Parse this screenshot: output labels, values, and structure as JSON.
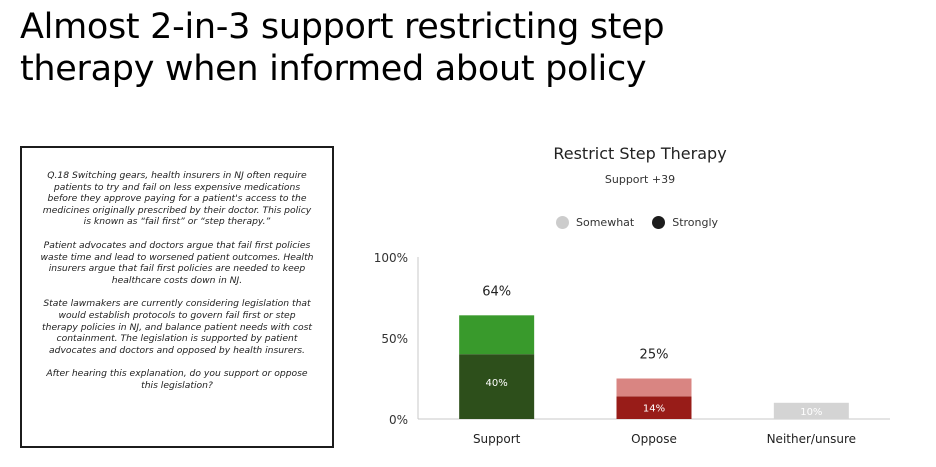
{
  "slide": {
    "title_line1": "Almost 2-in-3 support restricting step",
    "title_line2": "therapy when informed about policy"
  },
  "question": {
    "paragraphs": [
      "Q.18 Switching gears, health insurers in NJ often require patients to try and fail on less expensive medications before they approve paying for a patient's access to the medicines originally prescribed by their doctor. This policy is known as “fail first” or “step therapy.”",
      "Patient advocates and doctors argue that fail first policies waste time and lead to worsened patient outcomes. Health insurers argue that fail first policies are needed to keep healthcare costs down in NJ.",
      "State lawmakers are currently considering legislation that would establish protocols to govern fail first or step therapy policies in NJ, and balance patient needs with cost containment. The legislation is supported by patient advocates and doctors and opposed by health insurers.",
      "After hearing this explanation, do you support or oppose this legislation?"
    ]
  },
  "chart_data": {
    "type": "bar",
    "stacked": true,
    "title": "Restrict Step Therapy",
    "subtitle": "Support +39",
    "categories": [
      "Support",
      "Oppose",
      "Neither/unsure"
    ],
    "ylim": [
      0,
      100
    ],
    "yticks": [
      0,
      50,
      100
    ],
    "ytick_labels": [
      "0%",
      "50%",
      "100%"
    ],
    "legend": {
      "placement": "top",
      "entries": [
        {
          "label": "Somewhat",
          "color": "#cccccc"
        },
        {
          "label": "Strongly",
          "color": "#1c1c1c"
        }
      ]
    },
    "bars": [
      {
        "category": "Support",
        "total": 64,
        "total_label": "64%",
        "strongly": 40,
        "strongly_label": "40%",
        "somewhat": 24,
        "strong_color": "#2d4f1b",
        "somewhat_color": "#399a2c"
      },
      {
        "category": "Oppose",
        "total": 25,
        "total_label": "25%",
        "strongly": 14,
        "strongly_label": "14%",
        "somewhat": 11,
        "strong_color": "#981c18",
        "somewhat_color": "#d98582"
      },
      {
        "category": "Neither/unsure",
        "total": 10,
        "total_label": "",
        "strongly": 10,
        "strongly_label": "10%",
        "somewhat": 0,
        "strong_color": "#d4d4d4",
        "somewhat_color": "#d4d4d4"
      }
    ]
  }
}
